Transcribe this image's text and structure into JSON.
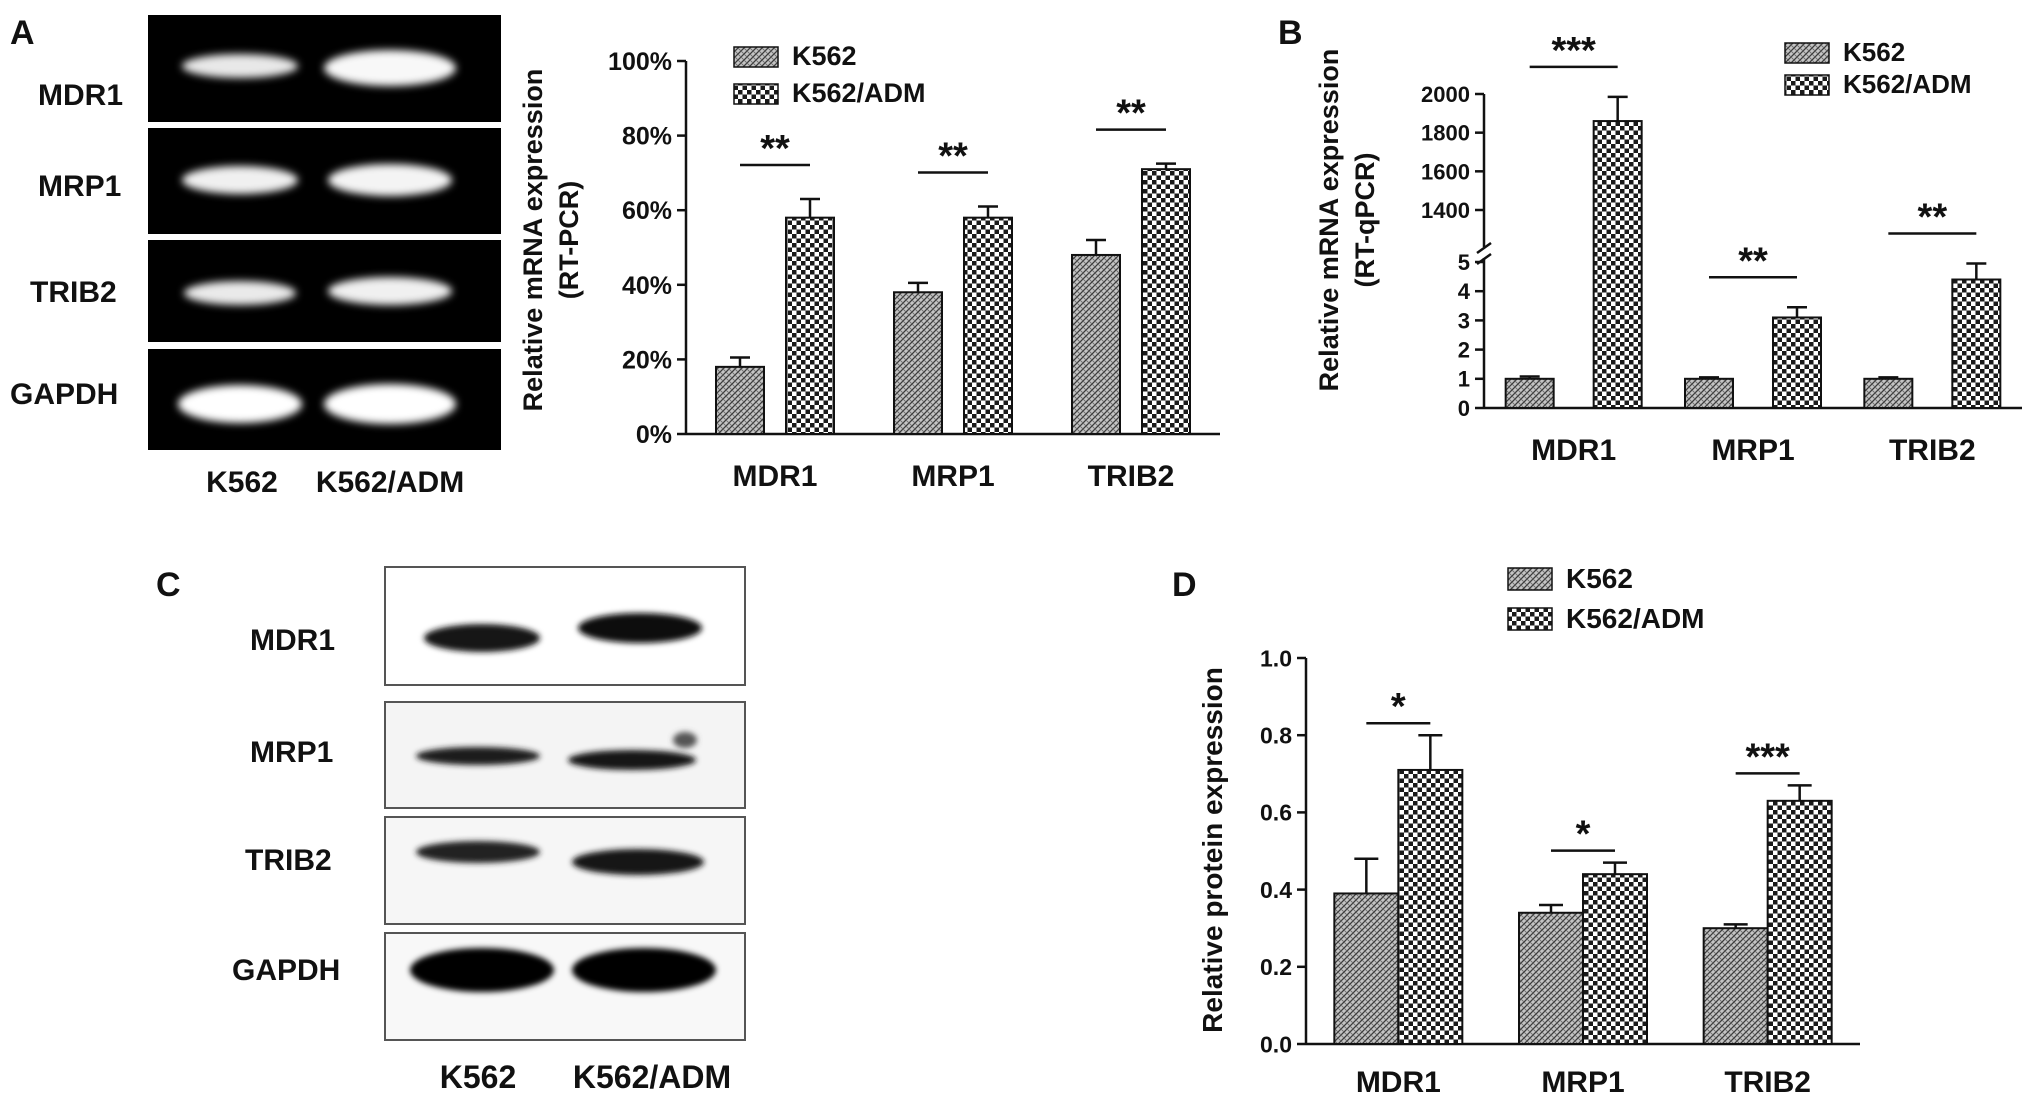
{
  "panels": {
    "A": {
      "letter": "A",
      "gel": {
        "rows": [
          "MDR1",
          "MRP1",
          "TRIB2",
          "GAPDH"
        ],
        "lanes": [
          "K562",
          "K562/ADM"
        ]
      }
    },
    "C": {
      "letter": "C",
      "blot": {
        "rows": [
          "MDR1",
          "MRP1",
          "TRIB2",
          "GAPDH"
        ],
        "lanes": [
          "K562",
          "K562/ADM"
        ]
      }
    },
    "B": {
      "letter": "B"
    },
    "D": {
      "letter": "D"
    }
  },
  "chart_data": [
    {
      "id": "A-bar",
      "type": "bar",
      "categories": [
        "MDR1",
        "MRP1",
        "TRIB2"
      ],
      "series": [
        {
          "name": "K562",
          "values": [
            18,
            38,
            48
          ],
          "errors": [
            2.5,
            2.5,
            4
          ]
        },
        {
          "name": "K562/ADM",
          "values": [
            58,
            58,
            71
          ],
          "errors": [
            5,
            3,
            1.5
          ]
        }
      ],
      "ylabel": "Relative mRNA expression (RT-PCR)",
      "ylabel_lines": [
        "Relative mRNA expression",
        "(RT-PCR)"
      ],
      "ylim": [
        0,
        100
      ],
      "yticks": [
        "0%",
        "20%",
        "40%",
        "60%",
        "80%",
        "100%"
      ],
      "significance": [
        "**",
        "**",
        "**"
      ],
      "legend": "top"
    },
    {
      "id": "B-bar",
      "type": "bar",
      "categories": [
        "MDR1",
        "MRP1",
        "TRIB2"
      ],
      "series": [
        {
          "name": "K562",
          "values": [
            1,
            1,
            1
          ],
          "errors": [
            0.08,
            0.05,
            0.05
          ]
        },
        {
          "name": "K562/ADM",
          "values": [
            1860,
            3.1,
            4.4
          ],
          "errors": [
            125,
            0.35,
            0.55
          ]
        }
      ],
      "ylabel": "Relative mRNA expression (RT-qPCR)",
      "ylabel_lines": [
        "Relative mRNA expression",
        "(RT-qPCR)"
      ],
      "broken_axis": {
        "lower": [
          0,
          5
        ],
        "upper": [
          1250,
          2000
        ]
      },
      "yticks_lower": [
        "0",
        "1",
        "2",
        "3",
        "4",
        "5"
      ],
      "yticks_upper": [
        "1400",
        "1600",
        "1800",
        "2000"
      ],
      "significance": [
        "***",
        "**",
        "**"
      ],
      "legend": "top-right"
    },
    {
      "id": "D-bar",
      "type": "bar",
      "categories": [
        "MDR1",
        "MRP1",
        "TRIB2"
      ],
      "series": [
        {
          "name": "K562",
          "values": [
            0.39,
            0.34,
            0.3
          ],
          "errors": [
            0.09,
            0.02,
            0.01
          ]
        },
        {
          "name": "K562/ADM",
          "values": [
            0.71,
            0.44,
            0.63
          ],
          "errors": [
            0.09,
            0.03,
            0.04
          ]
        }
      ],
      "ylabel": "Relative protein expression",
      "ylim": [
        0,
        1.0
      ],
      "yticks": [
        "0.0",
        "0.2",
        "0.4",
        "0.6",
        "0.8",
        "1.0"
      ],
      "significance": [
        "*",
        "*",
        "***"
      ],
      "legend": "top"
    }
  ]
}
